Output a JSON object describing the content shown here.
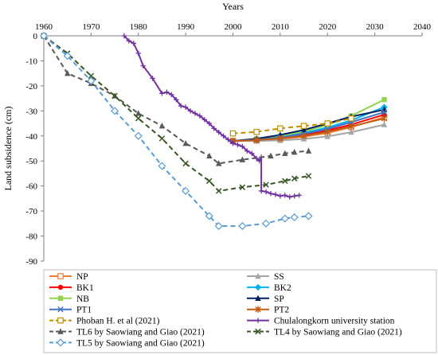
{
  "chart_data": {
    "type": "line",
    "title": "",
    "xlabel": "Years",
    "ylabel": "Land subsidence (cm)",
    "xlim": [
      1960,
      2040
    ],
    "ylim": [
      -90,
      0
    ],
    "xticks": [
      1960,
      1970,
      1980,
      1990,
      2000,
      2010,
      2020,
      2030,
      2040
    ],
    "yticks": [
      0,
      -10,
      -20,
      -30,
      -40,
      -50,
      -60,
      -70,
      -80,
      -90
    ],
    "x_axis_position": "top",
    "grid": false,
    "legend_position": "bottom",
    "series": [
      {
        "name": "NP",
        "color": "#ED7D31",
        "dash": "solid",
        "marker": "square-open",
        "x": [
          2000,
          2005,
          2010,
          2015,
          2020,
          2025,
          2032
        ],
        "y": [
          -42,
          -41.8,
          -41.2,
          -40.3,
          -38.8,
          -36.5,
          -32.5
        ]
      },
      {
        "name": "SS",
        "color": "#A5A5A5",
        "dash": "solid",
        "marker": "triangle",
        "x": [
          2000,
          2005,
          2010,
          2015,
          2020,
          2025,
          2032
        ],
        "y": [
          -42,
          -42,
          -41.8,
          -41.2,
          -40.2,
          -38.5,
          -35.5
        ]
      },
      {
        "name": "BK1",
        "color": "#FF0000",
        "dash": "solid",
        "marker": "circle",
        "x": [
          2000,
          2005,
          2010,
          2015,
          2020,
          2025,
          2032
        ],
        "y": [
          -42,
          -41.6,
          -40.8,
          -39.6,
          -37.8,
          -35.5,
          -31.5
        ]
      },
      {
        "name": "BK2",
        "color": "#00B0F0",
        "dash": "solid",
        "marker": "diamond",
        "x": [
          2000,
          2005,
          2010,
          2015,
          2020,
          2025,
          2032
        ],
        "y": [
          -42,
          -41.3,
          -40.3,
          -38.8,
          -36.6,
          -33.8,
          -28.5
        ]
      },
      {
        "name": "NB",
        "color": "#92D050",
        "dash": "solid",
        "marker": "square",
        "x": [
          2000,
          2005,
          2010,
          2015,
          2020,
          2025,
          2032
        ],
        "y": [
          -42,
          -41.2,
          -40,
          -38.2,
          -35.6,
          -32,
          -25.5
        ]
      },
      {
        "name": "SP",
        "color": "#002060",
        "dash": "solid",
        "marker": "triangle",
        "x": [
          2000,
          2005,
          2010,
          2015,
          2020,
          2025,
          2032
        ],
        "y": [
          -42,
          -41.1,
          -39.6,
          -37.6,
          -35,
          -32.3,
          -29.5
        ]
      },
      {
        "name": "PT1",
        "color": "#4472C4",
        "dash": "solid",
        "marker": "x",
        "x": [
          2000,
          2005,
          2010,
          2015,
          2020,
          2025,
          2032
        ],
        "y": [
          -42,
          -41.5,
          -40.6,
          -39.2,
          -37.2,
          -34.5,
          -30.5
        ]
      },
      {
        "name": "PT2",
        "color": "#C55A11",
        "dash": "solid",
        "marker": "star",
        "x": [
          2000,
          2005,
          2010,
          2015,
          2020,
          2025,
          2032
        ],
        "y": [
          -42,
          -41.7,
          -41,
          -40,
          -38.4,
          -36.2,
          -33
        ]
      },
      {
        "name": "Phoban H. et al (2021)",
        "color": "#BF9000",
        "dash": "dash",
        "marker": "square-open",
        "x": [
          2000,
          2005,
          2010,
          2015,
          2020,
          2025
        ],
        "y": [
          -39,
          -38.4,
          -37,
          -36,
          -35,
          -33
        ]
      },
      {
        "name": "Chulalongkorn university station",
        "color": "#7030A0",
        "dash": "solid",
        "marker": "plus",
        "x": [
          1977,
          1978,
          1979,
          1980,
          1981,
          1983,
          1985,
          1986,
          1987,
          1988,
          1989,
          1990,
          1991,
          1992,
          1993,
          1994,
          1995,
          1996,
          1997,
          1998,
          1999,
          2000,
          2001,
          2002,
          2003,
          2004,
          2005,
          2005.6,
          2006,
          2006,
          2007,
          2008,
          2009,
          2010,
          2011,
          2012,
          2013,
          2014
        ],
        "y": [
          0,
          -2,
          -3,
          -7,
          -12,
          -17,
          -23,
          -22.5,
          -23.5,
          -25.5,
          -28,
          -28.5,
          -30,
          -31,
          -32,
          -33.5,
          -35,
          -37,
          -38.5,
          -40,
          -41.5,
          -43,
          -43.5,
          -44.2,
          -46,
          -47,
          -49,
          -50,
          -48.5,
          -62,
          -62.3,
          -63,
          -63.4,
          -64,
          -63.7,
          -64.4,
          -64,
          -63.7
        ]
      },
      {
        "name": "TL6 by Saowiang and Giao (2021)",
        "color": "#595959",
        "dash": "dash",
        "marker": "triangle",
        "x": [
          1960,
          1965,
          1970,
          1975,
          1980,
          1985,
          1990,
          1995,
          1997,
          2002,
          2008,
          2011,
          2013,
          2016
        ],
        "y": [
          0,
          -15,
          -19,
          -24,
          -31,
          -36,
          -43,
          -48,
          -51,
          -49.5,
          -48,
          -47,
          -46.5,
          -46
        ]
      },
      {
        "name": "TL4 by Saowiang and Giao (2021)",
        "color": "#375623",
        "dash": "dash",
        "marker": "x",
        "x": [
          1960,
          1965,
          1970,
          1975,
          1980,
          1985,
          1990,
          1995,
          1997,
          2002,
          2007,
          2011,
          2013,
          2016
        ],
        "y": [
          0,
          -7,
          -16,
          -24,
          -33,
          -41,
          -51,
          -58,
          -62,
          -60.5,
          -59.5,
          -58,
          -57,
          -56
        ]
      },
      {
        "name": "TL5 by Saowiang and Giao (2021)",
        "color": "#5B9BD5",
        "dash": "dash",
        "marker": "diamond-open",
        "x": [
          1960,
          1965,
          1970,
          1975,
          1980,
          1985,
          1990,
          1995,
          1997,
          2002,
          2007,
          2011,
          2013,
          2016
        ],
        "y": [
          0,
          -8,
          -18,
          -30,
          -40,
          -52,
          -62,
          -72,
          -76,
          -76,
          -75,
          -73,
          -72.5,
          -72
        ]
      }
    ]
  }
}
